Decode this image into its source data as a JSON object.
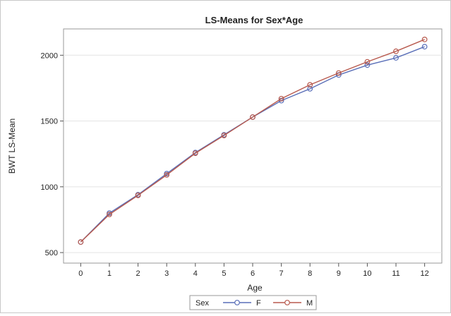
{
  "chart_data": {
    "type": "line",
    "title": "LS-Means for Sex*Age",
    "xlabel": "Age",
    "ylabel": "BWT LS-Mean",
    "categories": [
      "0",
      "1",
      "2",
      "3",
      "4",
      "5",
      "6",
      "7",
      "8",
      "9",
      "10",
      "11",
      "12"
    ],
    "x": [
      0,
      1,
      2,
      3,
      4,
      5,
      6,
      7,
      8,
      9,
      10,
      11,
      12
    ],
    "xlim": [
      -0.6,
      12.6
    ],
    "ylim": [
      420,
      2200
    ],
    "yticks": [
      500,
      1000,
      1500,
      2000
    ],
    "grid": "horizontal",
    "legend": {
      "title": "Sex",
      "position": "bottom"
    },
    "series": [
      {
        "name": "F",
        "color": "#5a6fb8",
        "values": [
          580,
          800,
          940,
          1100,
          1260,
          1395,
          1530,
          1655,
          1745,
          1850,
          1925,
          1980,
          2065
        ]
      },
      {
        "name": "M",
        "color": "#b85a4e",
        "values": [
          580,
          790,
          935,
          1090,
          1255,
          1390,
          1530,
          1670,
          1775,
          1865,
          1950,
          2030,
          2120
        ]
      }
    ]
  }
}
